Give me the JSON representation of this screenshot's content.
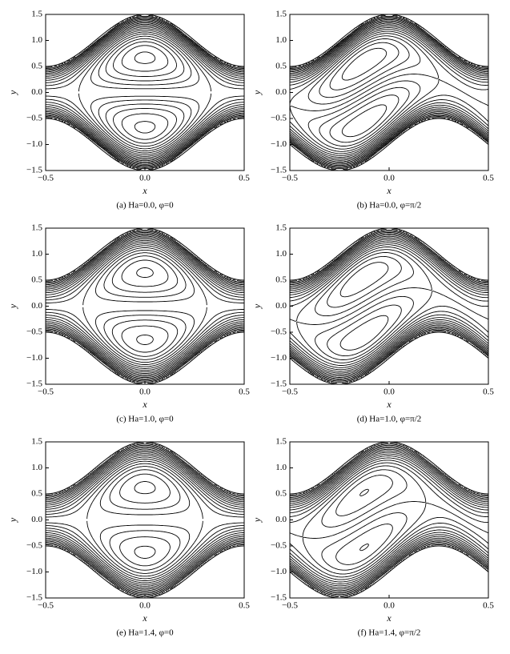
{
  "chart_data": [
    {
      "type": "contour",
      "caption": "(a) Ha=0.0, φ=0",
      "xlabel": "x",
      "ylabel": "y",
      "xlim": [
        -0.5,
        0.5
      ],
      "ylim": [
        -1.5,
        1.5
      ],
      "xticks": [
        {
          "value": -0.5,
          "label": "−0.5"
        },
        {
          "value": 0,
          "label": "0.0"
        },
        0.5
      ],
      "yticks": [
        {
          "value": -1.5,
          "label": "−1.5"
        },
        {
          "value": -1,
          "label": "−1.0"
        },
        {
          "value": -0.5,
          "label": "−0.5"
        },
        {
          "value": 0,
          "label": "0.0"
        },
        0.5,
        {
          "value": 1,
          "label": "1.0"
        },
        1.5
      ]
    },
    {
      "type": "contour",
      "caption": "(b) Ha=0.0, φ=π/2",
      "xlabel": "x",
      "ylabel": "y",
      "xlim": [
        -0.5,
        0.5
      ],
      "ylim": [
        -1.5,
        1.5
      ],
      "xticks": [
        {
          "value": -0.5,
          "label": "−0.5"
        },
        {
          "value": 0,
          "label": "0.0"
        },
        0.5
      ],
      "yticks": [
        {
          "value": -1.5,
          "label": "−1.5"
        },
        {
          "value": -1,
          "label": "−1.0"
        },
        {
          "value": -0.5,
          "label": "−0.5"
        },
        {
          "value": 0,
          "label": "0.0"
        },
        0.5,
        {
          "value": 1,
          "label": "1.0"
        },
        1.5
      ]
    },
    {
      "type": "contour",
      "caption": "(c) Ha=1.0, φ=0",
      "xlabel": "x",
      "ylabel": "y",
      "xlim": [
        -0.5,
        0.5
      ],
      "ylim": [
        -1.5,
        1.5
      ],
      "xticks": [
        {
          "value": -0.5,
          "label": "−0.5"
        },
        {
          "value": 0,
          "label": "0.0"
        },
        0.5
      ],
      "yticks": [
        {
          "value": -1.5,
          "label": "−1.5"
        },
        {
          "value": -1,
          "label": "−1.0"
        },
        {
          "value": -0.5,
          "label": "−0.5"
        },
        {
          "value": 0,
          "label": "0.0"
        },
        0.5,
        {
          "value": 1,
          "label": "1.0"
        },
        1.5
      ]
    },
    {
      "type": "contour",
      "caption": "(d) Ha=1.0, φ=π/2",
      "xlabel": "x",
      "ylabel": "y",
      "xlim": [
        -0.5,
        0.5
      ],
      "ylim": [
        -1.5,
        1.5
      ],
      "xticks": [
        {
          "value": -0.5,
          "label": "−0.5"
        },
        {
          "value": 0,
          "label": "0.0"
        },
        0.5
      ],
      "yticks": [
        {
          "value": -1.5,
          "label": "−1.5"
        },
        {
          "value": -1,
          "label": "−1.0"
        },
        {
          "value": -0.5,
          "label": "−0.5"
        },
        {
          "value": 0,
          "label": "0.0"
        },
        0.5,
        {
          "value": 1,
          "label": "1.0"
        },
        1.5
      ]
    },
    {
      "type": "contour",
      "caption": "(e) Ha=1.4, φ=0",
      "xlabel": "x",
      "ylabel": "y",
      "xlim": [
        -0.5,
        0.5
      ],
      "ylim": [
        -1.5,
        1.5
      ],
      "xticks": [
        {
          "value": -0.5,
          "label": "−0.5"
        },
        {
          "value": 0,
          "label": "0.0"
        },
        0.5
      ],
      "yticks": [
        {
          "value": -1.5,
          "label": "−1.5"
        },
        {
          "value": -1,
          "label": "−1.0"
        },
        {
          "value": -0.5,
          "label": "−0.5"
        },
        {
          "value": 0,
          "label": "0.0"
        },
        0.5,
        {
          "value": 1,
          "label": "1.0"
        },
        1.5
      ]
    },
    {
      "type": "contour",
      "caption": "(f) Ha=1.4, φ=π/2",
      "xlabel": "x",
      "ylabel": "y",
      "xlim": [
        -0.5,
        0.5
      ],
      "ylim": [
        -1.5,
        1.5
      ],
      "xticks": [
        {
          "value": -0.5,
          "label": "−0.5"
        },
        {
          "value": 0,
          "label": "0.0"
        },
        0.5
      ],
      "yticks": [
        {
          "value": -1.5,
          "label": "−1.5"
        },
        {
          "value": -1,
          "label": "−1.0"
        },
        {
          "value": -0.5,
          "label": "−0.5"
        },
        {
          "value": 0,
          "label": "0.0"
        },
        0.5,
        {
          "value": 1,
          "label": "1.0"
        },
        1.5
      ]
    }
  ]
}
